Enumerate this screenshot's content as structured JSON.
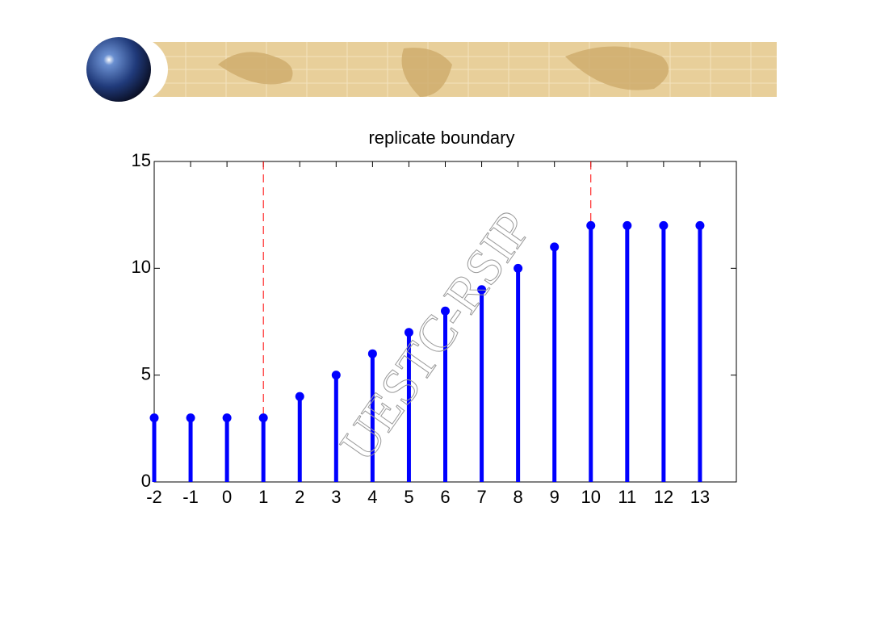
{
  "chart_data": {
    "type": "stem",
    "title": "replicate boundary",
    "watermark": "UESTC-RSIP",
    "x": [
      -2,
      -1,
      0,
      1,
      2,
      3,
      4,
      5,
      6,
      7,
      8,
      9,
      10,
      11,
      12,
      13
    ],
    "series": [
      {
        "color": "#0000ff",
        "values": [
          3,
          3,
          3,
          3,
          4,
          5,
          6,
          7,
          8,
          9,
          10,
          11,
          12,
          12,
          12,
          12
        ]
      }
    ],
    "xlim": [
      -2,
      14
    ],
    "xticks": [
      -2,
      -1,
      0,
      1,
      2,
      3,
      4,
      5,
      6,
      7,
      8,
      9,
      10,
      11,
      12,
      13
    ],
    "ylim": [
      0,
      15
    ],
    "yticks": [
      0,
      5,
      10,
      15
    ],
    "vlines": [
      1,
      10
    ],
    "vline_color": "#ff0000"
  }
}
